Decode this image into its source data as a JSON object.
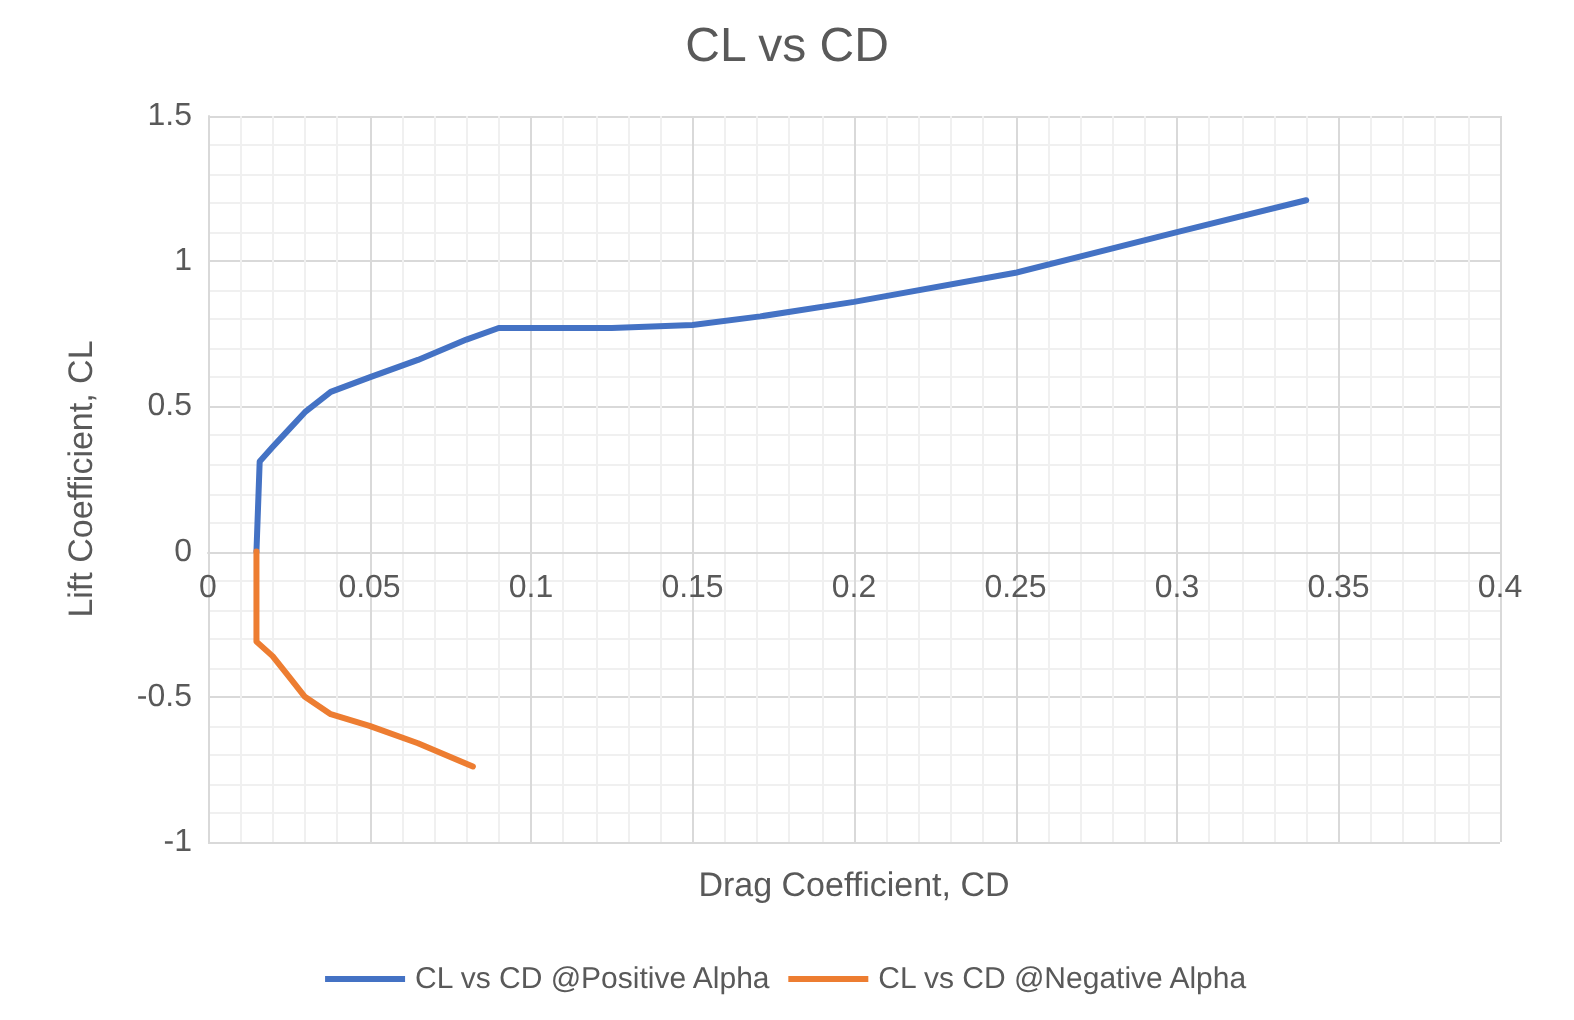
{
  "chart_data": {
    "type": "line",
    "title": "CL vs CD",
    "xlabel": "Drag Coefficient, CD",
    "ylabel": "Lift Coefficient, CL",
    "xlim": [
      0,
      0.4
    ],
    "xticks": [
      0,
      0.05,
      0.1,
      0.15,
      0.2,
      0.25,
      0.3,
      0.35,
      0.4
    ],
    "ylim": [
      -1,
      1.5
    ],
    "yticks": [
      -1,
      -0.5,
      0,
      0.5,
      1,
      1.5
    ],
    "grid": true,
    "legend": "bottom",
    "marker": "none",
    "line_style": "solid",
    "series": [
      {
        "name": "CL vs CD @Positive Alpha",
        "color": "#4472c4",
        "x": [
          0.015,
          0.016,
          0.02,
          0.025,
          0.03,
          0.038,
          0.05,
          0.065,
          0.08,
          0.09,
          0.1,
          0.115,
          0.125,
          0.15,
          0.171,
          0.2,
          0.25,
          0.3,
          0.34
        ],
        "values": [
          0,
          0.31,
          0.36,
          0.42,
          0.48,
          0.55,
          0.6,
          0.66,
          0.73,
          0.77,
          0.77,
          0.77,
          0.77,
          0.78,
          0.81,
          0.86,
          0.96,
          1.1,
          1.21
        ]
      },
      {
        "name": "CL vs CD @Negative Alpha",
        "color": "#ed7d31",
        "x": [
          0.015,
          0.015,
          0.02,
          0.025,
          0.03,
          0.038,
          0.05,
          0.065,
          0.082
        ],
        "values": [
          0,
          -0.31,
          -0.36,
          -0.43,
          -0.5,
          -0.56,
          -0.6,
          -0.66,
          -0.74
        ]
      }
    ]
  }
}
